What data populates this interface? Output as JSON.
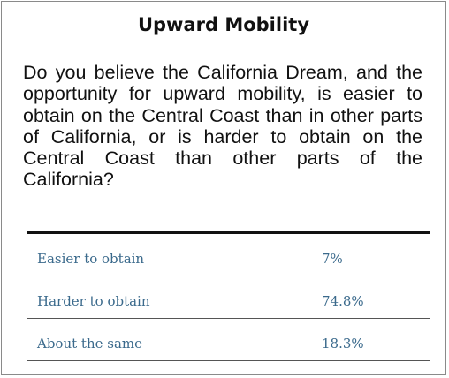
{
  "title": "Upward Mobility",
  "question": "Do you believe the California Dream, and the opportunity for upward mobility, is easier to obtain on the Central Coast than in other parts of California, or is harder to obtain on the Central Coast than other parts of the California?",
  "rows": [
    {
      "label": "Easier to obtain",
      "value": "7%"
    },
    {
      "label": "Harder to obtain",
      "value": "74.8%"
    },
    {
      "label": "About the same",
      "value": "18.3%"
    }
  ],
  "colors": {
    "row_text": "#3b6a8c",
    "title_text": "#111111"
  }
}
